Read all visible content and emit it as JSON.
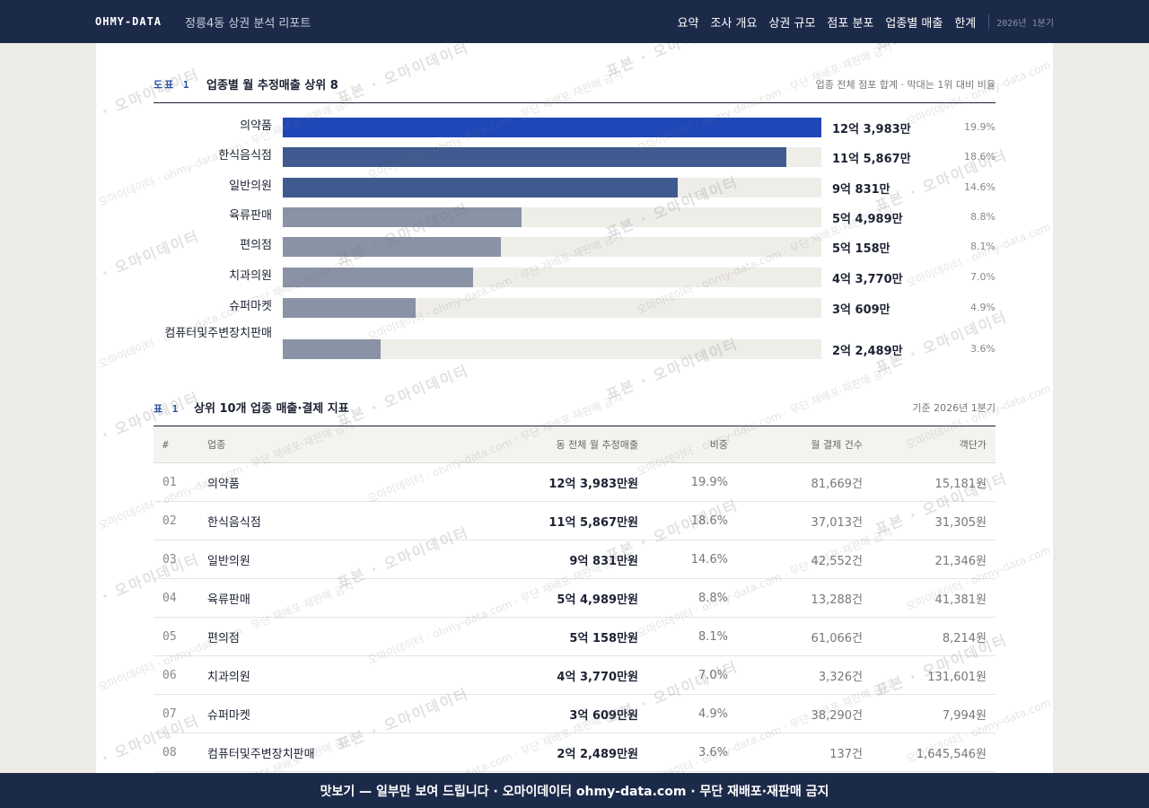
{
  "header": {
    "brand": "OHMY-DATA",
    "subtitle": "정릉4동 상권 분석 리포트",
    "nav": [
      "요약",
      "조사 개요",
      "상권 규모",
      "점포 분포",
      "업종별 매출",
      "한계"
    ],
    "period": "2026년 1분기"
  },
  "figure": {
    "tag": "도표 1",
    "title": "업종별 월 추정매출 상위 8",
    "note": "업종 전체 점포 합계 · 막대는 1위 대비 비율",
    "colors": {
      "top": "#1f47b8",
      "mid": "#3f5a8e",
      "low": "#8a92a6",
      "track": "#efede8"
    }
  },
  "chart_data": {
    "type": "bar",
    "title": "업종별 월 추정매출 상위 8",
    "categories": [
      "의약품",
      "한식음식점",
      "일반의원",
      "육류판매",
      "편의점",
      "치과의원",
      "슈퍼마켓",
      "컴퓨터및주변장치판매"
    ],
    "values": [
      12.3983,
      11.5867,
      9.0831,
      5.4989,
      5.0158,
      4.377,
      3.0609,
      2.2489
    ],
    "value_labels": [
      "12억 3,983만",
      "11억 5,867만",
      "9억 831만",
      "5억 4,989만",
      "5억 158만",
      "4억 3,770만",
      "3억 609만",
      "2억 2,489만"
    ],
    "shares": [
      "19.9%",
      "18.6%",
      "14.6%",
      "8.8%",
      "8.1%",
      "7.0%",
      "4.9%",
      "3.6%"
    ],
    "xlabel": "",
    "ylabel": ""
  },
  "table": {
    "tag": "표 1",
    "title": "상위 10개 업종 매출·결제 지표",
    "note": "기준 2026년 1분기",
    "columns": [
      "#",
      "업종",
      "동 전체 월 추정매출",
      "비중",
      "월 결제 건수",
      "객단가"
    ],
    "rows": [
      [
        "01",
        "의약품",
        "12억 3,983만원",
        "19.9%",
        "81,669건",
        "15,181원"
      ],
      [
        "02",
        "한식음식점",
        "11억 5,867만원",
        "18.6%",
        "37,013건",
        "31,305원"
      ],
      [
        "03",
        "일반의원",
        "9억 831만원",
        "14.6%",
        "42,552건",
        "21,346원"
      ],
      [
        "04",
        "육류판매",
        "5억 4,989만원",
        "8.8%",
        "13,288건",
        "41,381원"
      ],
      [
        "05",
        "편의점",
        "5억 158만원",
        "8.1%",
        "61,066건",
        "8,214원"
      ],
      [
        "06",
        "치과의원",
        "4억 3,770만원",
        "7.0%",
        "3,326건",
        "131,601원"
      ],
      [
        "07",
        "슈퍼마켓",
        "3억 609만원",
        "4.9%",
        "38,290건",
        "7,994원"
      ],
      [
        "08",
        "컴퓨터및주변장치판매",
        "2억 2,489만원",
        "3.6%",
        "137건",
        "1,645,546원"
      ]
    ]
  },
  "watermark": {
    "main": "표본 · 오마이데이터",
    "sub": "오마이데이터 · ohmy-data.com · 무단 재배포·재판매 금지"
  },
  "footer": {
    "text": "맛보기 — 일부만 보여 드립니다 · 오마이데이터 ohmy-data.com · 무단 재배포·재판매 금지"
  }
}
